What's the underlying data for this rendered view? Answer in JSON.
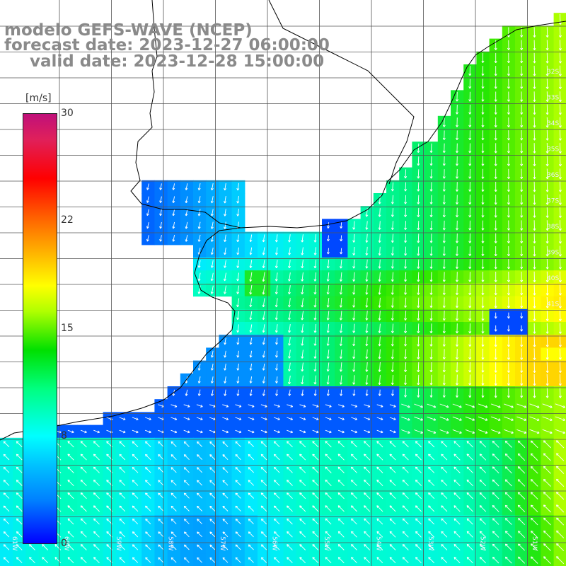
{
  "title": {
    "line1": "modelo GEFS-WAVE (NCEP)",
    "line2": "forecast date: 2023-12-27 06:00:00",
    "line3": "valid date: 2023-12-28 15:00:00"
  },
  "colorbar": {
    "units": "[m/s]",
    "ticks": [
      "30",
      "22",
      "15",
      "8",
      "0"
    ]
  },
  "map": {
    "variable": "wind speed and direction",
    "lat_labels": [
      "32S",
      "33S",
      "34S",
      "35S",
      "36S",
      "37S",
      "38S",
      "39S",
      "40S",
      "41S"
    ],
    "lon_labels": [
      "61W",
      "60W",
      "59W",
      "58W",
      "57W",
      "56W",
      "55W",
      "54W",
      "53W",
      "52W",
      "51W"
    ]
  },
  "colors": {
    "land": "#ffffff",
    "grid": "#555555",
    "coast": "#000000",
    "arrows": "#ffffff",
    "title_text": "#8a8a8a"
  }
}
